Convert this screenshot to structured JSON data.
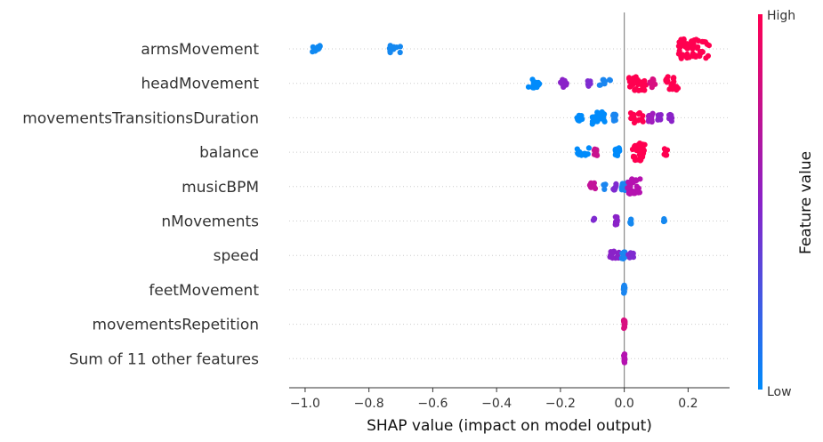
{
  "chart_data": {
    "type": "scatter",
    "subtype": "shap-beeswarm",
    "xlabel": "SHAP value (impact on model output)",
    "xlim": [
      -1.05,
      0.33
    ],
    "xticks": [
      -1.0,
      -0.8,
      -0.6,
      -0.4,
      -0.2,
      0.0,
      0.2
    ],
    "xtick_labels": [
      "−1.0",
      "−0.8",
      "−0.6",
      "−0.4",
      "−0.2",
      "0.0",
      "0.2"
    ],
    "features": [
      {
        "name": "armsMovement",
        "clusters": [
          {
            "x": -0.96,
            "color": "#0f89f2",
            "n": 10,
            "spread": 0.02
          },
          {
            "x": -0.72,
            "color": "#1588f0",
            "n": 10,
            "spread": 0.02
          },
          {
            "x": 0.22,
            "color": "#ff0050",
            "n": 60,
            "spread": 0.05
          }
        ]
      },
      {
        "name": "headMovement",
        "clusters": [
          {
            "x": -0.285,
            "color": "#008bfb",
            "n": 14,
            "spread": 0.02
          },
          {
            "x": -0.19,
            "color": "#8a22c8",
            "n": 10,
            "spread": 0.01
          },
          {
            "x": -0.11,
            "color": "#7f2bd0",
            "n": 8,
            "spread": 0.005
          },
          {
            "x": -0.06,
            "color": "#1a86f0",
            "n": 10,
            "spread": 0.02
          },
          {
            "x": 0.04,
            "color": "#ff0050",
            "n": 30,
            "spread": 0.03
          },
          {
            "x": 0.09,
            "color": "#d80f80",
            "n": 12,
            "spread": 0.01
          },
          {
            "x": 0.15,
            "color": "#ff0050",
            "n": 24,
            "spread": 0.02
          }
        ]
      },
      {
        "name": "movementsTransitionsDuration",
        "clusters": [
          {
            "x": -0.14,
            "color": "#008bfb",
            "n": 12,
            "spread": 0.01
          },
          {
            "x": -0.08,
            "color": "#008bfb",
            "n": 24,
            "spread": 0.02
          },
          {
            "x": -0.03,
            "color": "#1a86f0",
            "n": 8,
            "spread": 0.005
          },
          {
            "x": 0.04,
            "color": "#ff0050",
            "n": 16,
            "spread": 0.02
          },
          {
            "x": 0.08,
            "color": "#a01dbd",
            "n": 12,
            "spread": 0.01
          },
          {
            "x": 0.11,
            "color": "#8a22c8",
            "n": 10,
            "spread": 0.005
          },
          {
            "x": 0.145,
            "color": "#8a22c8",
            "n": 10,
            "spread": 0.005
          }
        ]
      },
      {
        "name": "balance",
        "clusters": [
          {
            "x": -0.13,
            "color": "#008bfb",
            "n": 12,
            "spread": 0.02
          },
          {
            "x": -0.09,
            "color": "#c8128e",
            "n": 8,
            "spread": 0.005
          },
          {
            "x": -0.02,
            "color": "#008bfb",
            "n": 12,
            "spread": 0.01
          },
          {
            "x": 0.045,
            "color": "#ff0050",
            "n": 36,
            "spread": 0.02
          },
          {
            "x": 0.13,
            "color": "#ff0050",
            "n": 8,
            "spread": 0.005
          }
        ]
      },
      {
        "name": "musicBPM",
        "clusters": [
          {
            "x": -0.1,
            "color": "#c3139a",
            "n": 10,
            "spread": 0.01
          },
          {
            "x": -0.06,
            "color": "#1a86f0",
            "n": 6,
            "spread": 0.005
          },
          {
            "x": -0.03,
            "color": "#7f2bd0",
            "n": 8,
            "spread": 0.005
          },
          {
            "x": 0.0,
            "color": "#1a86f0",
            "n": 12,
            "spread": 0.01
          },
          {
            "x": 0.03,
            "color": "#b512b0",
            "n": 30,
            "spread": 0.02
          }
        ]
      },
      {
        "name": "nMovements",
        "clusters": [
          {
            "x": -0.095,
            "color": "#7f2bd0",
            "n": 4,
            "spread": 0.002
          },
          {
            "x": -0.025,
            "color": "#8a22c8",
            "n": 12,
            "spread": 0.003
          },
          {
            "x": 0.02,
            "color": "#1588f0",
            "n": 6,
            "spread": 0.002
          },
          {
            "x": 0.125,
            "color": "#1588f0",
            "n": 4,
            "spread": 0.002
          }
        ]
      },
      {
        "name": "speed",
        "clusters": [
          {
            "x": -0.03,
            "color": "#8a22c8",
            "n": 12,
            "spread": 0.015
          },
          {
            "x": -0.003,
            "color": "#1a86f0",
            "n": 12,
            "spread": 0.005
          },
          {
            "x": 0.02,
            "color": "#7f2bd0",
            "n": 8,
            "spread": 0.01
          }
        ]
      },
      {
        "name": "feetMovement",
        "clusters": [
          {
            "x": 0.0,
            "color": "#1a86f0",
            "n": 14,
            "spread": 0.002
          }
        ]
      },
      {
        "name": "movementsRepetition",
        "clusters": [
          {
            "x": 0.0,
            "color": "#d80f80",
            "n": 14,
            "spread": 0.002
          }
        ]
      },
      {
        "name": "Sum of 11 other features",
        "clusters": [
          {
            "x": 0.0,
            "color": "#b512b0",
            "n": 14,
            "spread": 0.002
          }
        ]
      }
    ],
    "colorbar": {
      "label": "Feature value",
      "high": "High",
      "low": "Low",
      "colors": [
        "#008bfb",
        "#ff0052"
      ]
    },
    "grid": false,
    "legend": "colorbar-right"
  }
}
